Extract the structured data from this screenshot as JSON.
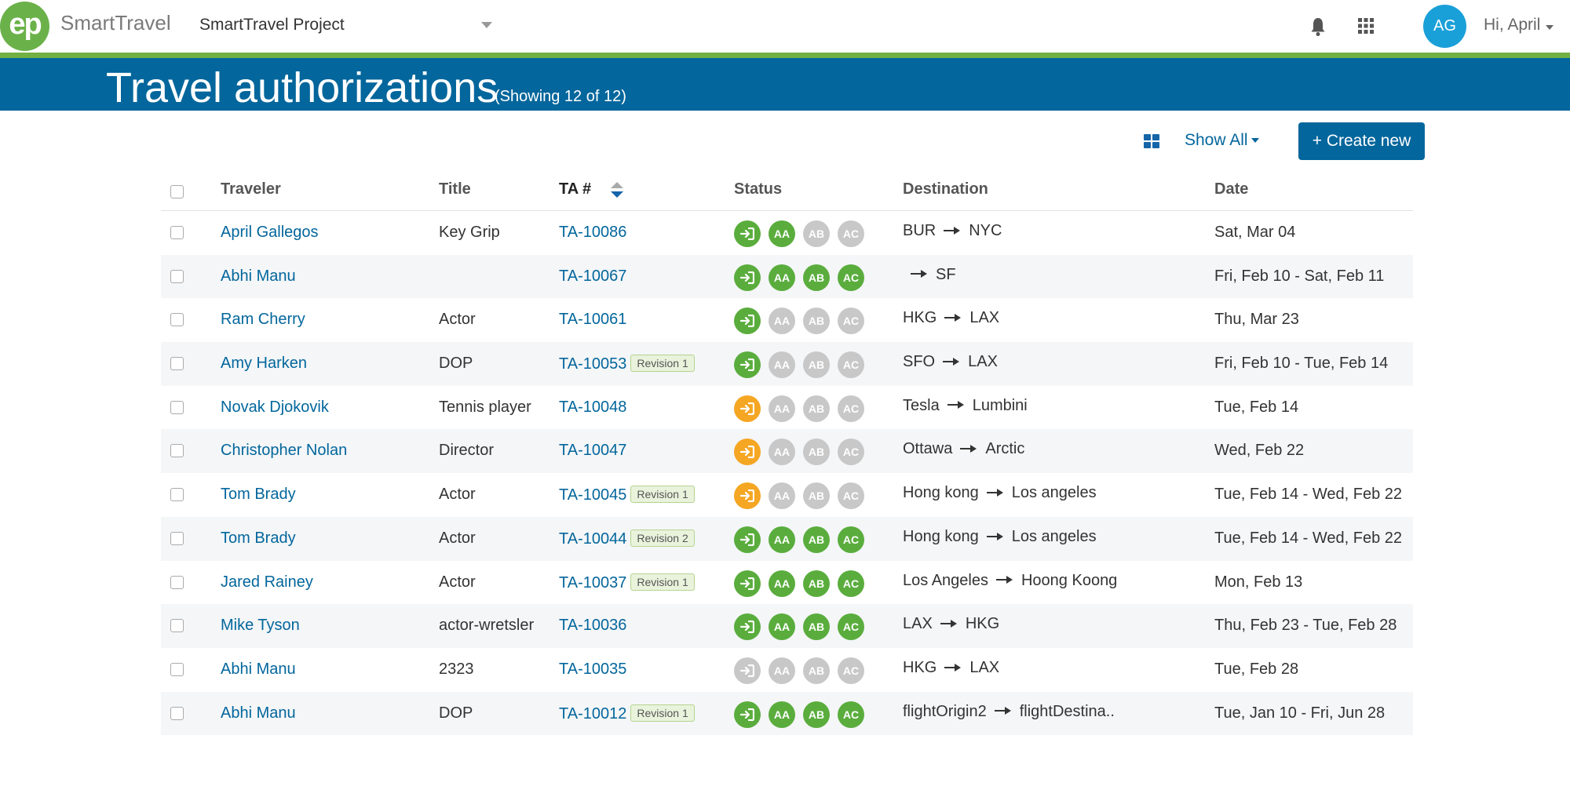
{
  "header": {
    "logo_text": "ep",
    "brand": "SmartTravel",
    "project": "SmartTravel Project",
    "avatar_initials": "AG",
    "greeting": "Hi, April"
  },
  "banner": {
    "title": "Travel authorizations",
    "count": "(Showing 12 of 12)"
  },
  "toolbar": {
    "filter_label": "Show All",
    "create_label": "+ Create new"
  },
  "table": {
    "columns": {
      "traveler": "Traveler",
      "title": "Title",
      "ta": "TA #",
      "status": "Status",
      "destination": "Destination",
      "date": "Date"
    },
    "status_labels": [
      "AA",
      "AB",
      "AC"
    ],
    "rows": [
      {
        "traveler": "April Gallegos",
        "title": "Key Grip",
        "ta": "TA-10086",
        "revision": "",
        "status": [
          "green",
          "green",
          "grey",
          "grey"
        ],
        "origin": "BUR",
        "destination": "NYC",
        "date": "Sat, Mar 04"
      },
      {
        "traveler": "Abhi Manu",
        "title": "",
        "ta": "TA-10067",
        "revision": "",
        "status": [
          "green",
          "green",
          "green",
          "green"
        ],
        "origin": "",
        "destination": "SF",
        "date": "Fri, Feb 10 - Sat, Feb 11"
      },
      {
        "traveler": "Ram Cherry",
        "title": "Actor",
        "ta": "TA-10061",
        "revision": "",
        "status": [
          "green",
          "grey",
          "grey",
          "grey"
        ],
        "origin": "HKG",
        "destination": "LAX",
        "date": "Thu, Mar 23"
      },
      {
        "traveler": "Amy Harken",
        "title": "DOP",
        "ta": "TA-10053",
        "revision": "Revision 1",
        "status": [
          "green",
          "grey",
          "grey",
          "grey"
        ],
        "origin": "SFO",
        "destination": "LAX",
        "date": "Fri, Feb 10 - Tue, Feb 14"
      },
      {
        "traveler": "Novak Djokovik",
        "title": "Tennis player",
        "ta": "TA-10048",
        "revision": "",
        "status": [
          "orange",
          "grey",
          "grey",
          "grey"
        ],
        "origin": "Tesla",
        "destination": "Lumbini",
        "date": "Tue, Feb 14"
      },
      {
        "traveler": "Christopher Nolan",
        "title": "Director",
        "ta": "TA-10047",
        "revision": "",
        "status": [
          "orange",
          "grey",
          "grey",
          "grey"
        ],
        "origin": "Ottawa",
        "destination": "Arctic",
        "date": "Wed, Feb 22"
      },
      {
        "traveler": "Tom Brady",
        "title": "Actor",
        "ta": "TA-10045",
        "revision": "Revision 1",
        "status": [
          "orange",
          "grey",
          "grey",
          "grey"
        ],
        "origin": "Hong kong",
        "destination": "Los angeles",
        "date": "Tue, Feb 14 - Wed, Feb 22"
      },
      {
        "traveler": "Tom Brady",
        "title": "Actor",
        "ta": "TA-10044",
        "revision": "Revision 2",
        "status": [
          "green",
          "green",
          "green",
          "green"
        ],
        "origin": "Hong kong",
        "destination": "Los angeles",
        "date": "Tue, Feb 14 - Wed, Feb 22"
      },
      {
        "traveler": "Jared Rainey",
        "title": "Actor",
        "ta": "TA-10037",
        "revision": "Revision 1",
        "status": [
          "green",
          "green",
          "green",
          "green"
        ],
        "origin": "Los Angeles",
        "destination": "Hoong Koong",
        "date": "Mon, Feb 13"
      },
      {
        "traveler": "Mike Tyson",
        "title": "actor-wretsler",
        "ta": "TA-10036",
        "revision": "",
        "status": [
          "green",
          "green",
          "green",
          "green"
        ],
        "origin": "LAX",
        "destination": "HKG",
        "date": "Thu, Feb 23 - Tue, Feb 28"
      },
      {
        "traveler": "Abhi Manu",
        "title": "2323",
        "ta": "TA-10035",
        "revision": "",
        "status": [
          "grey",
          "grey",
          "grey",
          "grey"
        ],
        "origin": "HKG",
        "destination": "LAX",
        "date": "Tue, Feb 28"
      },
      {
        "traveler": "Abhi Manu",
        "title": "DOP",
        "ta": "TA-10012",
        "revision": "Revision 1",
        "status": [
          "green",
          "green",
          "green",
          "green"
        ],
        "origin": "flightOrigin2",
        "destination": "flightDestina..",
        "date": "Tue, Jan 10 - Fri, Jun 28"
      }
    ]
  },
  "colors": {
    "brand_blue": "#03669c",
    "accent_green": "#72b043",
    "status_green": "#5aad3d",
    "status_orange": "#f5a623",
    "status_grey": "#c8c8c8"
  }
}
